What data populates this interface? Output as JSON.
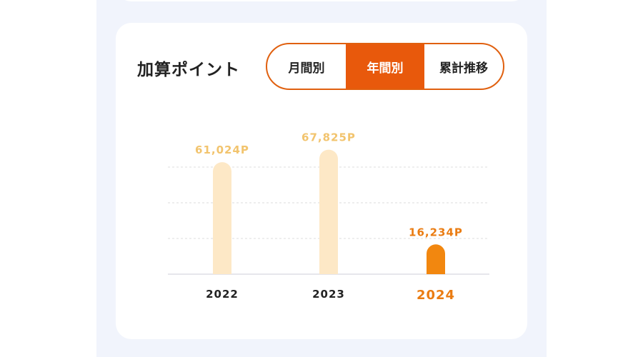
{
  "section": {
    "title": "加算ポイント"
  },
  "tabs": [
    {
      "label": "月間別",
      "active": false
    },
    {
      "label": "年間別",
      "active": true
    },
    {
      "label": "累計推移",
      "active": false
    }
  ],
  "colors": {
    "accent": "#e8590c",
    "bar_past": "#fde8c6",
    "bar_current": "#f2870f",
    "label_past": "#f2c46e",
    "label_current": "#ea7c12",
    "grid": "#dedede",
    "baseline": "#e6e6ec"
  },
  "chart_data": {
    "type": "bar",
    "categories": [
      "2022",
      "2023",
      "2024"
    ],
    "values": [
      61024,
      67825,
      16234
    ],
    "value_labels": [
      "61,024P",
      "67,825P",
      "16,234P"
    ],
    "highlight_index": 2,
    "ylim": [
      0,
      70000
    ],
    "grid": true,
    "legend": "none",
    "title": "",
    "xlabel": "",
    "ylabel": ""
  }
}
